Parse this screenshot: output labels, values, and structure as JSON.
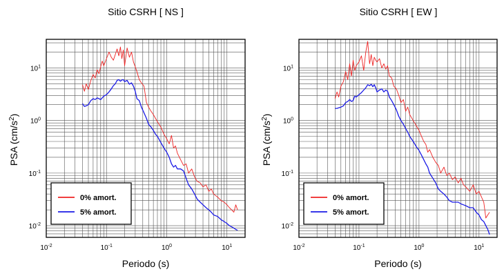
{
  "chart_data": [
    {
      "type": "line",
      "title": "Sitio CSRH [ NS ]",
      "xlabel": "Periodo (s)",
      "ylabel": "PSA (cm/s",
      "ylabel_sup": "2",
      "ylabel_end": ")",
      "xscale": "log",
      "yscale": "log",
      "xlim": [
        0.01,
        20
      ],
      "ylim": [
        0.006,
        35
      ],
      "grid": true,
      "legend_position": "bottom-left",
      "x_ticks": [
        {
          "value": 0.01,
          "base": "10",
          "exp": "-2"
        },
        {
          "value": 0.1,
          "base": "10",
          "exp": "-1"
        },
        {
          "value": 1,
          "base": "10",
          "exp": "0"
        },
        {
          "value": 10,
          "base": "10",
          "exp": "1"
        }
      ],
      "y_ticks": [
        {
          "value": 0.01,
          "base": "10",
          "exp": "-2"
        },
        {
          "value": 0.1,
          "base": "10",
          "exp": "-1"
        },
        {
          "value": 1,
          "base": "10",
          "exp": "0"
        },
        {
          "value": 10,
          "base": "10",
          "exp": "1"
        }
      ],
      "series": [
        {
          "name": "0% amort.",
          "color": "#ee2222",
          "x": [
            0.04,
            0.043,
            0.046,
            0.05,
            0.055,
            0.06,
            0.065,
            0.07,
            0.075,
            0.08,
            0.085,
            0.09,
            0.1,
            0.11,
            0.12,
            0.13,
            0.14,
            0.15,
            0.16,
            0.17,
            0.18,
            0.19,
            0.2,
            0.22,
            0.24,
            0.26,
            0.28,
            0.3,
            0.32,
            0.35,
            0.38,
            0.42,
            0.46,
            0.5,
            0.55,
            0.6,
            0.65,
            0.7,
            0.8,
            0.9,
            1.0,
            1.1,
            1.2,
            1.3,
            1.4,
            1.5,
            1.7,
            1.9,
            2.1,
            2.3,
            2.6,
            2.9,
            3.2,
            3.6,
            4.0,
            4.5,
            5.0,
            5.5,
            6.0,
            7.0,
            8.0,
            9.0,
            10,
            11,
            12,
            13,
            14,
            15
          ],
          "y": [
            4.8,
            3.6,
            5.0,
            3.9,
            5.8,
            7.5,
            6.4,
            9.2,
            7.8,
            10.5,
            13.5,
            11.0,
            15.0,
            20.0,
            16.0,
            14.0,
            18.0,
            23.0,
            17.0,
            25.0,
            15.0,
            22.0,
            11.0,
            24.0,
            16.0,
            20.0,
            13.0,
            10.5,
            8.5,
            6.0,
            5.2,
            4.5,
            2.2,
            1.8,
            1.5,
            1.3,
            1.1,
            0.95,
            0.75,
            0.55,
            0.45,
            0.36,
            0.52,
            0.3,
            0.33,
            0.24,
            0.18,
            0.14,
            0.15,
            0.1,
            0.12,
            0.085,
            0.07,
            0.065,
            0.055,
            0.06,
            0.045,
            0.05,
            0.04,
            0.035,
            0.03,
            0.028,
            0.025,
            0.022,
            0.02,
            0.018,
            0.025,
            0.02
          ]
        },
        {
          "name": "5% amort.",
          "color": "#1a1ae6",
          "x": [
            0.04,
            0.043,
            0.046,
            0.05,
            0.055,
            0.06,
            0.065,
            0.07,
            0.075,
            0.08,
            0.085,
            0.09,
            0.1,
            0.11,
            0.12,
            0.13,
            0.14,
            0.15,
            0.16,
            0.17,
            0.18,
            0.19,
            0.2,
            0.22,
            0.24,
            0.26,
            0.28,
            0.3,
            0.32,
            0.35,
            0.38,
            0.42,
            0.46,
            0.5,
            0.55,
            0.6,
            0.65,
            0.7,
            0.8,
            0.9,
            1.0,
            1.1,
            1.2,
            1.3,
            1.4,
            1.5,
            1.7,
            1.9,
            2.1,
            2.3,
            2.6,
            2.9,
            3.2,
            3.6,
            4.0,
            4.5,
            5.0,
            5.5,
            6.0,
            7.0,
            8.0,
            9.0,
            10,
            11,
            12,
            13,
            14,
            15
          ],
          "y": [
            2.1,
            1.85,
            1.9,
            2.0,
            2.4,
            2.6,
            2.5,
            2.7,
            2.6,
            2.5,
            2.7,
            2.9,
            3.1,
            3.5,
            4.0,
            4.6,
            5.0,
            5.8,
            6.0,
            5.6,
            5.9,
            6.0,
            5.5,
            5.8,
            4.9,
            5.2,
            4.5,
            3.6,
            2.6,
            2.4,
            1.8,
            1.4,
            1.1,
            0.85,
            0.75,
            0.65,
            0.55,
            0.5,
            0.38,
            0.3,
            0.25,
            0.2,
            0.15,
            0.13,
            0.14,
            0.12,
            0.12,
            0.11,
            0.08,
            0.06,
            0.05,
            0.04,
            0.032,
            0.028,
            0.025,
            0.022,
            0.02,
            0.018,
            0.016,
            0.015,
            0.013,
            0.012,
            0.011,
            0.01,
            0.0095,
            0.009,
            0.0085,
            0.0082
          ]
        }
      ]
    },
    {
      "type": "line",
      "title": "Sitio CSRH [ EW ]",
      "xlabel": "Periodo (s)",
      "ylabel": "PSA (cm/s",
      "ylabel_sup": "2",
      "ylabel_end": ")",
      "xscale": "log",
      "yscale": "log",
      "xlim": [
        0.01,
        20
      ],
      "ylim": [
        0.006,
        35
      ],
      "grid": true,
      "legend_position": "bottom-left",
      "x_ticks": [
        {
          "value": 0.01,
          "base": "10",
          "exp": "-2"
        },
        {
          "value": 0.1,
          "base": "10",
          "exp": "-1"
        },
        {
          "value": 1,
          "base": "10",
          "exp": "0"
        },
        {
          "value": 10,
          "base": "10",
          "exp": "1"
        }
      ],
      "y_ticks": [
        {
          "value": 0.01,
          "base": "10",
          "exp": "-2"
        },
        {
          "value": 0.1,
          "base": "10",
          "exp": "-1"
        },
        {
          "value": 1,
          "base": "10",
          "exp": "0"
        },
        {
          "value": 10,
          "base": "10",
          "exp": "1"
        }
      ],
      "series": [
        {
          "name": "0% amort.",
          "color": "#ee2222",
          "x": [
            0.04,
            0.043,
            0.046,
            0.05,
            0.055,
            0.06,
            0.065,
            0.07,
            0.075,
            0.08,
            0.085,
            0.09,
            0.1,
            0.11,
            0.12,
            0.13,
            0.14,
            0.15,
            0.16,
            0.17,
            0.18,
            0.19,
            0.2,
            0.22,
            0.24,
            0.26,
            0.28,
            0.3,
            0.32,
            0.35,
            0.38,
            0.42,
            0.46,
            0.5,
            0.55,
            0.6,
            0.65,
            0.7,
            0.8,
            0.9,
            1.0,
            1.1,
            1.2,
            1.3,
            1.4,
            1.5,
            1.7,
            1.9,
            2.1,
            2.3,
            2.6,
            2.9,
            3.2,
            3.6,
            4.0,
            4.5,
            5.0,
            5.5,
            6.0,
            7.0,
            8.0,
            9.0,
            10,
            11,
            12,
            13,
            14,
            15
          ],
          "y": [
            2.6,
            3.5,
            2.8,
            4.5,
            5.5,
            8.5,
            6.0,
            12.0,
            7.0,
            14.0,
            9.0,
            11.0,
            13.0,
            17.0,
            9.0,
            20.0,
            32.0,
            12.0,
            18.0,
            11.0,
            16.0,
            14.0,
            13.0,
            15.0,
            10.0,
            12.0,
            9.5,
            11.0,
            7.0,
            6.5,
            4.5,
            4.0,
            3.0,
            2.2,
            2.5,
            1.5,
            1.8,
            1.3,
            1.0,
            0.8,
            0.65,
            0.5,
            0.4,
            0.35,
            0.25,
            0.28,
            0.2,
            0.16,
            0.14,
            0.1,
            0.13,
            0.09,
            0.1,
            0.075,
            0.085,
            0.065,
            0.08,
            0.06,
            0.055,
            0.045,
            0.06,
            0.04,
            0.045,
            0.035,
            0.028,
            0.014,
            0.016,
            0.018
          ]
        },
        {
          "name": "5% amort.",
          "color": "#1a1ae6",
          "x": [
            0.04,
            0.043,
            0.046,
            0.05,
            0.055,
            0.06,
            0.065,
            0.07,
            0.075,
            0.08,
            0.085,
            0.09,
            0.1,
            0.11,
            0.12,
            0.13,
            0.14,
            0.15,
            0.16,
            0.17,
            0.18,
            0.19,
            0.2,
            0.22,
            0.24,
            0.26,
            0.28,
            0.3,
            0.32,
            0.35,
            0.38,
            0.42,
            0.46,
            0.5,
            0.55,
            0.6,
            0.65,
            0.7,
            0.8,
            0.9,
            1.0,
            1.1,
            1.2,
            1.3,
            1.4,
            1.5,
            1.7,
            1.9,
            2.1,
            2.3,
            2.6,
            2.9,
            3.2,
            3.6,
            4.0,
            4.5,
            5.0,
            5.5,
            6.0,
            7.0,
            8.0,
            9.0,
            10,
            11,
            12,
            13,
            14,
            15
          ],
          "y": [
            1.7,
            1.7,
            1.75,
            1.8,
            1.9,
            2.2,
            2.3,
            2.5,
            2.3,
            2.4,
            2.9,
            2.8,
            3.1,
            3.4,
            3.8,
            4.2,
            4.8,
            4.6,
            4.9,
            4.4,
            4.8,
            4.2,
            3.5,
            3.8,
            4.0,
            3.5,
            3.8,
            3.6,
            2.8,
            2.4,
            2.0,
            1.6,
            1.2,
            1.0,
            0.85,
            0.7,
            0.6,
            0.5,
            0.4,
            0.32,
            0.27,
            0.22,
            0.18,
            0.15,
            0.13,
            0.1,
            0.08,
            0.065,
            0.05,
            0.045,
            0.04,
            0.035,
            0.03,
            0.028,
            0.028,
            0.028,
            0.026,
            0.025,
            0.024,
            0.022,
            0.022,
            0.018,
            0.016,
            0.013,
            0.012,
            0.01,
            0.0085,
            0.0068
          ]
        }
      ]
    }
  ]
}
